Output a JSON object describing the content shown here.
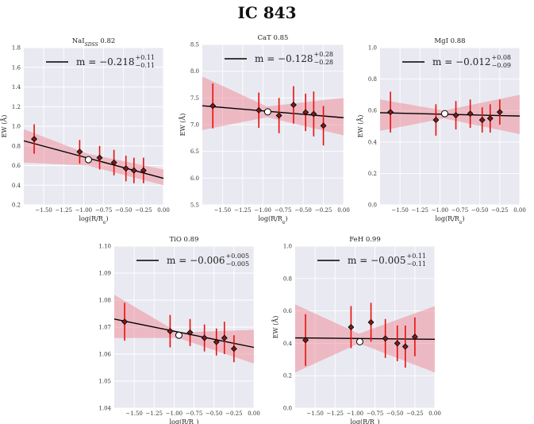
{
  "figure": {
    "title": "IC 843"
  },
  "chart_data": [
    {
      "type": "scatter",
      "title_main": "NaI",
      "title_sub": "SDSS",
      "title_value": "0.82",
      "xlabel": "log(R/R_e)",
      "ylabel": "EW (Å)",
      "xlim": [
        -1.75,
        0.0
      ],
      "ylim": [
        0.2,
        1.8
      ],
      "xticks": [
        "-1.50",
        "-1.25",
        "-1.00",
        "-0.75",
        "-0.50",
        "-0.25",
        "0.00"
      ],
      "yticks": [
        "0.2",
        "0.4",
        "0.6",
        "0.8",
        "1.0",
        "1.2",
        "1.4",
        "1.6",
        "1.8"
      ],
      "legend": {
        "prefix": "m = ",
        "value": "−0.218",
        "err_up": "+0.11",
        "err_low": "−0.11"
      },
      "fit": {
        "slope": -0.218,
        "intercept": 0.47
      },
      "band": {
        "x": [
          -1.75,
          -0.95,
          0.0
        ],
        "lower": [
          0.63,
          0.6,
          0.4
        ],
        "upper": [
          0.97,
          0.72,
          0.56
        ]
      },
      "points": [
        {
          "x": -1.62,
          "y": 0.87,
          "err": 0.15
        },
        {
          "x": -1.05,
          "y": 0.74,
          "err": 0.12
        },
        {
          "x": -0.8,
          "y": 0.68,
          "err": 0.12
        },
        {
          "x": -0.62,
          "y": 0.63,
          "err": 0.13
        },
        {
          "x": -0.47,
          "y": 0.57,
          "err": 0.13
        },
        {
          "x": -0.37,
          "y": 0.55,
          "err": 0.13
        },
        {
          "x": -0.25,
          "y": 0.55,
          "err": 0.13
        }
      ],
      "open_point": {
        "x": -0.94,
        "y": 0.66
      }
    },
    {
      "type": "scatter",
      "title_main": "CaT",
      "title_sub": "",
      "title_value": "0.85",
      "xlabel": "log(R/R_e)",
      "ylabel": "EW (Å)",
      "xlim": [
        -1.75,
        0.0
      ],
      "ylim": [
        5.5,
        8.5
      ],
      "xticks": [
        "-1.50",
        "-1.25",
        "-1.00",
        "-0.75",
        "-0.50",
        "-0.25",
        "0.00"
      ],
      "yticks": [
        "5.5",
        "6.0",
        "6.5",
        "7.0",
        "7.5",
        "8.0",
        "8.5"
      ],
      "legend": {
        "prefix": "m = ",
        "value": "−0.128",
        "err_up": "+0.28",
        "err_low": "−0.28"
      },
      "fit": {
        "slope": -0.128,
        "intercept": 7.13
      },
      "band": {
        "x": [
          -1.75,
          -0.95,
          0.0
        ],
        "lower": [
          6.9,
          7.14,
          6.8
        ],
        "upper": [
          7.9,
          7.34,
          7.5
        ]
      },
      "points": [
        {
          "x": -1.62,
          "y": 7.35,
          "err": 0.42
        },
        {
          "x": -1.05,
          "y": 7.27,
          "err": 0.33
        },
        {
          "x": -0.8,
          "y": 7.17,
          "err": 0.33
        },
        {
          "x": -0.62,
          "y": 7.37,
          "err": 0.35
        },
        {
          "x": -0.47,
          "y": 7.23,
          "err": 0.35
        },
        {
          "x": -0.37,
          "y": 7.2,
          "err": 0.42
        },
        {
          "x": -0.25,
          "y": 6.98,
          "err": 0.37
        }
      ],
      "open_point": {
        "x": -0.94,
        "y": 7.24
      }
    },
    {
      "type": "scatter",
      "title_main": "MgI",
      "title_sub": "",
      "title_value": "0.88",
      "xlabel": "log(R/R_e)",
      "ylabel": "EW (Å)",
      "xlim": [
        -1.75,
        0.0
      ],
      "ylim": [
        0.0,
        1.0
      ],
      "xticks": [
        "-1.50",
        "-1.25",
        "-1.00",
        "-0.75",
        "-0.50",
        "-0.25",
        "0.00"
      ],
      "yticks": [
        "0.0",
        "0.2",
        "0.4",
        "0.6",
        "0.8",
        "1.0"
      ],
      "legend": {
        "prefix": "m = ",
        "value": "−0.012",
        "err_up": "+0.08",
        "err_low": "−0.09"
      },
      "fit": {
        "slope": -0.012,
        "intercept": 0.565
      },
      "band": {
        "x": [
          -1.75,
          -0.95,
          0.0
        ],
        "lower": [
          0.47,
          0.55,
          0.45
        ],
        "upper": [
          0.67,
          0.6,
          0.7
        ]
      },
      "points": [
        {
          "x": -1.62,
          "y": 0.59,
          "err": 0.13
        },
        {
          "x": -1.05,
          "y": 0.54,
          "err": 0.1
        },
        {
          "x": -0.8,
          "y": 0.57,
          "err": 0.09
        },
        {
          "x": -0.62,
          "y": 0.58,
          "err": 0.09
        },
        {
          "x": -0.47,
          "y": 0.54,
          "err": 0.08
        },
        {
          "x": -0.37,
          "y": 0.55,
          "err": 0.09
        },
        {
          "x": -0.25,
          "y": 0.59,
          "err": 0.08
        }
      ],
      "open_point": {
        "x": -0.94,
        "y": 0.58
      }
    },
    {
      "type": "scatter",
      "title_main": "TiO",
      "title_sub": "",
      "title_value": "0.89",
      "xlabel": "log(R/R_e)",
      "ylabel": "",
      "xlim": [
        -1.75,
        0.0
      ],
      "ylim": [
        1.04,
        1.1
      ],
      "xticks": [
        "-1.50",
        "-1.25",
        "-1.00",
        "-0.75",
        "-0.50",
        "-0.25",
        "0.00"
      ],
      "yticks": [
        "1.04",
        "1.05",
        "1.06",
        "1.07",
        "1.08",
        "1.09",
        "1.10"
      ],
      "legend": {
        "prefix": "m = ",
        "value": "−0.006",
        "err_up": "+0.005",
        "err_low": "−0.005"
      },
      "fit": {
        "slope": -0.006,
        "intercept": 1.0625
      },
      "band": {
        "x": [
          -1.75,
          -0.95,
          0.0
        ],
        "lower": [
          1.066,
          1.066,
          1.0565
        ],
        "upper": [
          1.082,
          1.068,
          1.069
        ]
      },
      "points": [
        {
          "x": -1.62,
          "y": 1.072,
          "err": 0.007
        },
        {
          "x": -1.05,
          "y": 1.0685,
          "err": 0.006
        },
        {
          "x": -0.8,
          "y": 1.068,
          "err": 0.005
        },
        {
          "x": -0.62,
          "y": 1.066,
          "err": 0.005
        },
        {
          "x": -0.47,
          "y": 1.0645,
          "err": 0.005
        },
        {
          "x": -0.37,
          "y": 1.066,
          "err": 0.006
        },
        {
          "x": -0.25,
          "y": 1.062,
          "err": 0.005
        }
      ],
      "open_point": {
        "x": -0.94,
        "y": 1.067
      }
    },
    {
      "type": "scatter",
      "title_main": "FeH",
      "title_sub": "",
      "title_value": "0.99",
      "xlabel": "log(R/R_e)",
      "ylabel": "EW (Å)",
      "xlim": [
        -1.75,
        0.0
      ],
      "ylim": [
        0.0,
        1.0
      ],
      "xticks": [
        "-1.50",
        "-1.25",
        "-1.00",
        "-0.75",
        "-0.50",
        "-0.25",
        "0.00"
      ],
      "yticks": [
        "0.0",
        "0.2",
        "0.4",
        "0.6",
        "0.8",
        "1.0"
      ],
      "legend": {
        "prefix": "m = ",
        "value": "−0.005",
        "err_up": "+0.11",
        "err_low": "−0.11"
      },
      "fit": {
        "slope": -0.005,
        "intercept": 0.425
      },
      "band": {
        "x": [
          -1.75,
          -0.95,
          0.0
        ],
        "lower": [
          0.22,
          0.4,
          0.22
        ],
        "upper": [
          0.64,
          0.46,
          0.63
        ]
      },
      "points": [
        {
          "x": -1.62,
          "y": 0.42,
          "err": 0.16
        },
        {
          "x": -1.05,
          "y": 0.5,
          "err": 0.13
        },
        {
          "x": -0.8,
          "y": 0.53,
          "err": 0.12
        },
        {
          "x": -0.62,
          "y": 0.43,
          "err": 0.12
        },
        {
          "x": -0.47,
          "y": 0.4,
          "err": 0.11
        },
        {
          "x": -0.37,
          "y": 0.38,
          "err": 0.13
        },
        {
          "x": -0.25,
          "y": 0.44,
          "err": 0.12
        }
      ],
      "open_point": {
        "x": -0.94,
        "y": 0.41
      }
    }
  ]
}
